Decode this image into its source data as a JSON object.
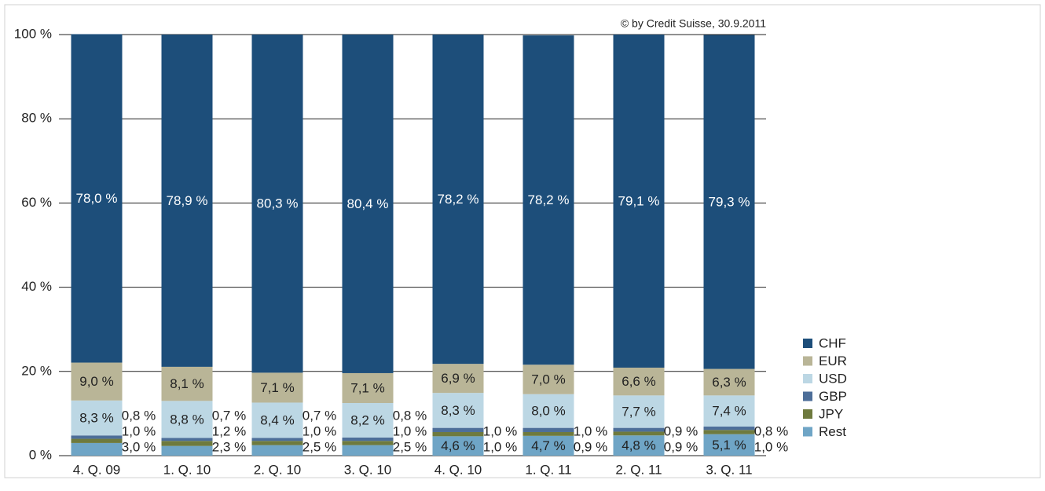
{
  "chart_data": {
    "type": "stacked_bar",
    "annotation": "© by Credit Suisse, 30.9.2011",
    "categories": [
      "4. Q. 09",
      "1. Q. 10",
      "2. Q. 10",
      "3. Q. 10",
      "4. Q. 10",
      "1. Q. 11",
      "2. Q. 11",
      "3. Q. 11"
    ],
    "series": [
      {
        "name": "Rest",
        "color": "#6fa5c6",
        "values": [
          3.0,
          2.3,
          2.5,
          2.5,
          4.6,
          4.7,
          4.8,
          5.1
        ],
        "value_labels": [
          "3,0 %",
          "2,3 %",
          "2,5 %",
          "2,5 %",
          "4,6 %",
          "4,7 %",
          "4,8 %",
          "5,1 %"
        ]
      },
      {
        "name": "JPY",
        "color": "#6e7a3e",
        "values": [
          1.0,
          1.2,
          1.0,
          1.0,
          1.0,
          0.9,
          0.9,
          1.0
        ],
        "value_labels": [
          "1,0 %",
          "1,2 %",
          "1,0 %",
          "1,0 %",
          "1,0 %",
          "0,9 %",
          "0,9 %",
          "1,0 %"
        ]
      },
      {
        "name": "GBP",
        "color": "#4d6e99",
        "values": [
          0.8,
          0.7,
          0.7,
          0.8,
          1.0,
          1.0,
          0.9,
          0.8
        ],
        "value_labels": [
          "0,8 %",
          "0,7 %",
          "0,7 %",
          "0,8 %",
          "1,0 %",
          "1,0 %",
          "0,9 %",
          "0,8 %"
        ]
      },
      {
        "name": "USD",
        "color": "#bcd7e4",
        "values": [
          8.3,
          8.8,
          8.4,
          8.2,
          8.3,
          8.0,
          7.7,
          7.4
        ],
        "value_labels": [
          "8,3 %",
          "8,8 %",
          "8,4 %",
          "8,2 %",
          "8,3 %",
          "8,0 %",
          "7,7 %",
          "7,4 %"
        ]
      },
      {
        "name": "EUR",
        "color": "#b9b597",
        "values": [
          9.0,
          8.1,
          7.1,
          7.1,
          6.9,
          7.0,
          6.6,
          6.3
        ],
        "value_labels": [
          "9,0 %",
          "8,1 %",
          "7,1 %",
          "7,1 %",
          "6,9 %",
          "7,0 %",
          "6,6 %",
          "6,3 %"
        ]
      },
      {
        "name": "CHF",
        "color": "#1d4e7a",
        "values": [
          78.0,
          78.9,
          80.3,
          80.4,
          78.2,
          78.2,
          79.1,
          79.3
        ],
        "value_labels": [
          "78,0 %",
          "78,9 %",
          "80,3 %",
          "80,4 %",
          "78,2 %",
          "78,2 %",
          "79,1 %",
          "79,3 %"
        ]
      }
    ],
    "ylim": [
      0,
      100
    ],
    "yticks": [
      {
        "value": 0,
        "label": "0 %"
      },
      {
        "value": 20,
        "label": "20 %"
      },
      {
        "value": 40,
        "label": "40 %"
      },
      {
        "value": 60,
        "label": "60 %"
      },
      {
        "value": 80,
        "label": "80 %"
      },
      {
        "value": 100,
        "label": "100 %"
      }
    ],
    "grid": true,
    "legend": "lower right"
  }
}
